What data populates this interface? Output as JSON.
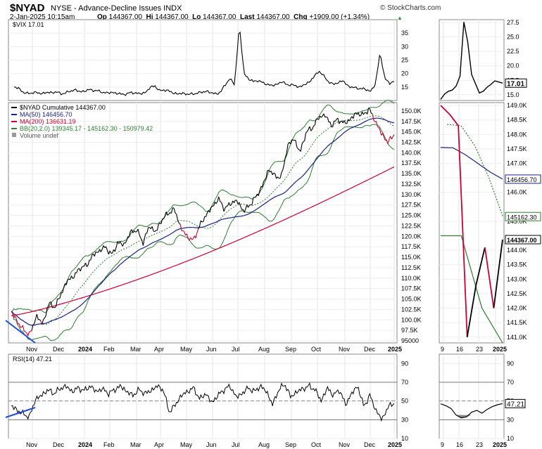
{
  "header": {
    "symbol": "$NYAD",
    "name": "NYSE - Advance-Decline Issues INDX",
    "date": "2-Jan-2025 10:15am",
    "open_label": "Op",
    "open": "144367.00",
    "high_label": "Hi",
    "high": "144367.00",
    "low_label": "Lo",
    "low": "144367.00",
    "last_label": "Last",
    "last": "144367.00",
    "chg_label": "Chg",
    "chg": "+1909.00 (+1.34%)",
    "brand": "© StockCharts.com"
  },
  "colors": {
    "ma50": "#1a237e",
    "ma200": "#cc0033",
    "bb": "#2e7d32",
    "price": "#000000",
    "rsi_fill": "#888888"
  },
  "chart_data": [
    {
      "type": "line",
      "title": "$VIX 17.01",
      "ylim": [
        10,
        40
      ],
      "y_ticks": [
        "15",
        "20",
        "25",
        "30",
        "35"
      ],
      "x_labels": [
        "Nov",
        "Dec",
        "2024",
        "Feb",
        "Mar",
        "Apr",
        "May",
        "Jun",
        "Jul",
        "Aug",
        "Sep",
        "Oct",
        "Nov",
        "Dec",
        "2025"
      ],
      "series": [
        {
          "name": "$VIX",
          "last": "17.01",
          "values": [
            15,
            14.5,
            13,
            12.5,
            13,
            12.8,
            12.6,
            13,
            12.9,
            13.2,
            12.5,
            12.8,
            13.5,
            14,
            13.2,
            13.5,
            14,
            13.8,
            13.5,
            13,
            12.8,
            13,
            12.6,
            12.3,
            12.4,
            13,
            12.7,
            12.5,
            13,
            14.8,
            15.5,
            13.5,
            14,
            13.5,
            12.7,
            12.5,
            12.6,
            12.4,
            12.3,
            12.8,
            13,
            13.5,
            12.8,
            12.5,
            13,
            16,
            18,
            16,
            38,
            20,
            18,
            17,
            17.5,
            16.5,
            16,
            15.5,
            16,
            17,
            16,
            15.8,
            15.5,
            15,
            16,
            17,
            19,
            21,
            19,
            17,
            16,
            16.5,
            17.5,
            15.5,
            15,
            14.5,
            14.5,
            14,
            13.5,
            16,
            28,
            18,
            16.5,
            17.01
          ]
        }
      ]
    },
    {
      "type": "line",
      "title": "$NYAD Cumulative 144367.00",
      "ylim": [
        94500,
        152000
      ],
      "y_ticks": [
        "95000",
        "97.5K",
        "100.0K",
        "102.5K",
        "105.0K",
        "107.5K",
        "110.0K",
        "112.5K",
        "115.0K",
        "117.5K",
        "120.0K",
        "122.5K",
        "125.0K",
        "127.5K",
        "130.0K",
        "132.5K",
        "135.0K",
        "137.5K",
        "140.0K",
        "142.5K",
        "145.0K",
        "147.5K",
        "150.0K"
      ],
      "x_labels": [
        "Nov",
        "Dec",
        "2024",
        "Feb",
        "Mar",
        "Apr",
        "May",
        "Jun",
        "Jul",
        "Aug",
        "Sep",
        "Oct",
        "Nov",
        "Dec",
        "2025"
      ],
      "legend": [
        {
          "text": "$NYAD Cumulative 144367.00",
          "color": "#000000"
        },
        {
          "text": "MA(50) 146456.70",
          "color": "#1a237e"
        },
        {
          "text": "MA(200) 136631.19",
          "color": "#cc0033"
        },
        {
          "text": "BB(20,2.0) 139345.17 - 145162.30 - 150979.42",
          "color": "#2e7d32"
        },
        {
          "text": "Volume undef",
          "color": "#555555"
        }
      ],
      "series": [
        {
          "name": "$NYAD Cumulative",
          "values": [
            102000,
            99500,
            97500,
            96500,
            101000,
            99000,
            104000,
            103000,
            106500,
            109500,
            110500,
            112500,
            113000,
            115500,
            116500,
            117500,
            115500,
            118500,
            118000,
            121000,
            121500,
            118500,
            122500,
            121000,
            124000,
            125500,
            126500,
            122000,
            120000,
            119000,
            122500,
            125000,
            127000,
            129000,
            126500,
            128000,
            128500,
            126000,
            127500,
            129500,
            132000,
            136000,
            134500,
            134000,
            141500,
            143500,
            140000,
            145000,
            146000,
            148500,
            149000,
            146500,
            148000,
            147000,
            148000,
            149500,
            149000,
            150500,
            147500,
            144500,
            142500,
            144367
          ]
        },
        {
          "name": "MA(50)",
          "last": "146456.70"
        },
        {
          "name": "MA(200)",
          "last": "136631.19"
        },
        {
          "name": "BB(20,2.0)",
          "lower": "139345.17",
          "middle": "145162.30",
          "upper": "150979.42"
        }
      ]
    },
    {
      "type": "line",
      "title": "RSI(14) 47.21",
      "ylim": [
        10,
        100
      ],
      "y_ticks": [
        "10",
        "30",
        "50",
        "70",
        "90"
      ],
      "x_labels": [
        "Nov",
        "Dec",
        "2024",
        "Feb",
        "Mar",
        "Apr",
        "May",
        "Jun",
        "Jul",
        "Aug",
        "Sep",
        "Oct",
        "Nov",
        "Dec",
        "2025"
      ],
      "series": [
        {
          "name": "RSI(14)",
          "last": "47.21",
          "values": [
            45,
            40,
            36,
            33,
            52,
            56,
            62,
            58,
            63,
            66,
            60,
            64,
            61,
            66,
            60,
            63,
            58,
            62,
            66,
            60,
            56,
            62,
            58,
            61,
            66,
            62,
            38,
            46,
            56,
            60,
            64,
            52,
            58,
            48,
            56,
            62,
            66,
            54,
            58,
            64,
            60,
            66,
            60,
            46,
            62,
            68,
            54,
            60,
            63,
            66,
            62,
            50,
            64,
            56,
            62,
            46,
            58,
            66,
            44,
            56,
            40,
            30,
            44,
            47.21
          ]
        }
      ]
    },
    {
      "type": "line",
      "title": "",
      "ylim": [
        14,
        28
      ],
      "y_ticks": [
        "15.0",
        "17.5",
        "20.0",
        "22.5",
        "25.0",
        "27.5"
      ],
      "x_labels": [
        "9",
        "16",
        "23",
        "2025"
      ],
      "series": [
        {
          "name": "$VIX",
          "last": "17.01",
          "values": [
            14.2,
            15.1,
            15.6,
            15.8,
            16.5,
            18.2,
            27.6,
            24.1,
            18.5,
            16.9,
            15.3,
            15.6,
            16.3,
            16.8,
            17.4,
            17.2,
            17.01
          ]
        }
      ]
    },
    {
      "type": "line",
      "title": "",
      "ylim": [
        140800,
        149100
      ],
      "y_ticks": [
        "141.0K",
        "141.5K",
        "142.0K",
        "142.5K",
        "143.0K",
        "143.5K",
        "144.0K",
        "145.0K",
        "146.0K",
        "146.5K",
        "147.0K",
        "147.5K",
        "148.0K",
        "148.5K",
        "149.0K"
      ],
      "x_labels": [
        "9",
        "16",
        "23",
        "2025"
      ],
      "price_labels": [
        "146456.70",
        "145162.30",
        "144367.00"
      ],
      "series": [
        {
          "name": "$NYAD Cumulative",
          "values": [
            149000,
            148700,
            148300,
            141000,
            142800,
            144100,
            142000,
            144367
          ]
        },
        {
          "name": "MA(50)",
          "values": [
            147550,
            147540,
            147300,
            147000,
            146700,
            146456.7
          ]
        },
        {
          "name": "BB middle",
          "values": [
            148350,
            148300,
            147600,
            146500,
            145162.3
          ]
        },
        {
          "name": "BB lower",
          "values": [
            144500,
            144500,
            142000,
            140800
          ]
        }
      ]
    },
    {
      "type": "line",
      "title": "",
      "ylim": [
        10,
        100
      ],
      "y_ticks": [
        "10",
        "30",
        "50",
        "70",
        "90"
      ],
      "x_labels": [
        "9",
        "16",
        "23",
        "2025"
      ],
      "series": [
        {
          "name": "RSI(14)",
          "last": "47.21",
          "values": [
            47,
            45,
            42,
            35,
            32,
            33,
            38,
            40,
            37,
            41,
            44,
            46,
            47.21
          ]
        }
      ]
    }
  ]
}
